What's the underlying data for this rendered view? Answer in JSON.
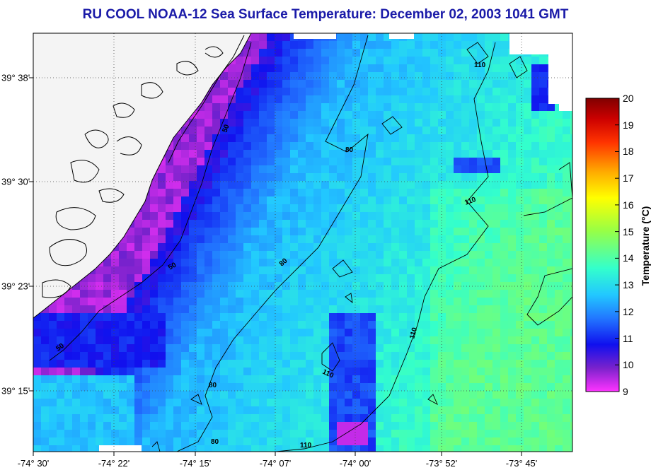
{
  "title": "RU COOL  NOAA-12  Sea Surface Temperature:  December 02, 2003 1041 GMT",
  "map": {
    "longitude_labels": [
      "-74° 30'",
      "-74° 22'",
      "-74° 15'",
      "-74° 07'",
      "-74° 00'",
      "-73° 52'",
      "-73° 45'"
    ],
    "latitude_labels": [
      "39° 38'",
      "39° 30'",
      "39° 23'",
      "39° 15'"
    ],
    "contour_labels": [
      "50",
      "50",
      "50",
      "80",
      "80",
      "80",
      "80",
      "110",
      "110",
      "110",
      "110",
      "110"
    ],
    "land_color": "#f4f4f4",
    "cloud_color": "#ffffff"
  },
  "colorbar": {
    "label": "Temperature (°C)",
    "ticks": [
      "20",
      "19",
      "18",
      "17",
      "16",
      "15",
      "14",
      "13",
      "12",
      "11",
      "10",
      "9"
    ],
    "min": 9,
    "max": 20,
    "colors": [
      "#ff33ff",
      "#7a22cc",
      "#1010ee",
      "#2277ff",
      "#22c8ff",
      "#33ffcc",
      "#99ff44",
      "#ffff00",
      "#ffaa00",
      "#ff3300",
      "#cc0000",
      "#800000"
    ]
  }
}
